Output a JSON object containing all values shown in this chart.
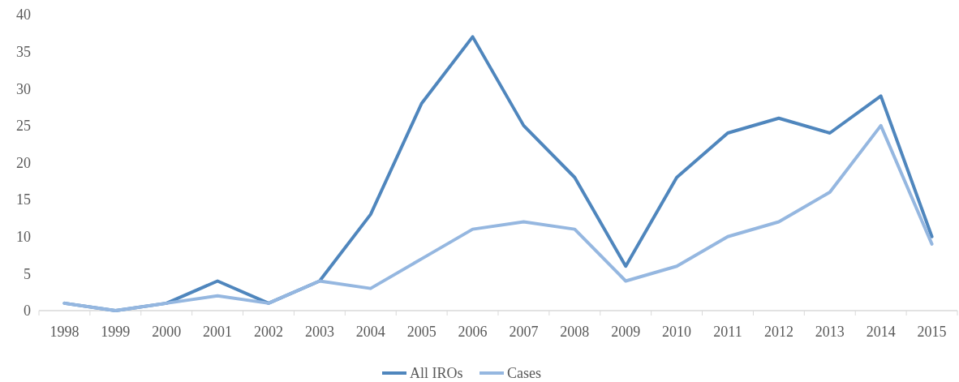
{
  "chart_data": {
    "type": "line",
    "categories": [
      "1998",
      "1999",
      "2000",
      "2001",
      "2002",
      "2003",
      "2004",
      "2005",
      "2006",
      "2007",
      "2008",
      "2009",
      "2010",
      "2011",
      "2012",
      "2013",
      "2014",
      "2015"
    ],
    "series": [
      {
        "name": "All IROs",
        "color": "#4f86bd",
        "values": [
          1,
          0,
          1,
          4,
          1,
          4,
          13,
          28,
          37,
          25,
          18,
          6,
          18,
          24,
          26,
          24,
          29,
          10
        ]
      },
      {
        "name": "Cases",
        "color": "#95b7e0",
        "values": [
          1,
          0,
          1,
          2,
          1,
          4,
          3,
          7,
          11,
          12,
          11,
          4,
          6,
          10,
          12,
          16,
          25,
          9
        ]
      }
    ],
    "ylim": [
      0,
      40
    ],
    "yticks": [
      0,
      5,
      10,
      15,
      20,
      25,
      30,
      35,
      40
    ],
    "grid": false,
    "legend": "bottom",
    "marker": "none",
    "line_style": "solid"
  }
}
